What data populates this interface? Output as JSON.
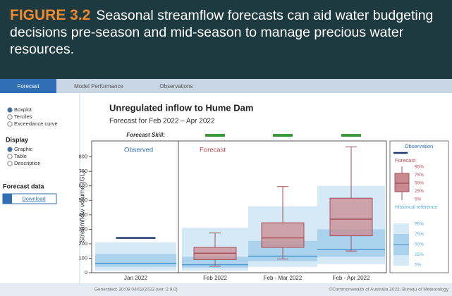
{
  "header": {
    "figure": "FIGURE 3.2",
    "caption": "Seasonal streamflow forecasts can aid water budgeting decisions pre-season and mid-season to manage precious water resources."
  },
  "tabs": [
    "Forecast",
    "Model Performance",
    "Observations"
  ],
  "sidebar": {
    "options": [
      "Boxplot",
      "Terciles",
      "Exceedance curve"
    ],
    "display_heading": "Display",
    "display_options": [
      "Graphic",
      "Table",
      "Description"
    ],
    "data_heading": "Forecast data",
    "download": "Download"
  },
  "chart_data": {
    "type": "boxplot",
    "title": "Unregulated inflow to Hume Dam",
    "subtitle": "Forecast for Feb 2022 – Apr 2022",
    "skill_label": "Forecast Skill:",
    "panels": [
      "Observed",
      "Forecast"
    ],
    "ylabel": "Streamflow volume (GL)",
    "categories": [
      "Jan 2022",
      "Feb 2022",
      "Feb - Mar 2022",
      "Feb - Apr 2022"
    ],
    "ylim": [
      0,
      910
    ],
    "yticks": [
      0,
      100,
      200,
      300,
      400,
      500,
      600,
      700,
      800
    ],
    "observed": {
      "name": "Observation",
      "color": "#1f3b6e",
      "values": [
        240,
        null,
        null,
        null
      ]
    },
    "forecast": {
      "name": "Forecast",
      "color": "#a8505a",
      "fill": "#c98a8f",
      "p5": [
        null,
        45,
        95,
        150
      ],
      "p25": [
        null,
        90,
        175,
        255
      ],
      "p50": [
        null,
        135,
        240,
        370
      ],
      "p75": [
        null,
        175,
        345,
        515
      ],
      "p95": [
        null,
        275,
        595,
        870
      ]
    },
    "historical": {
      "name": "Historical reference",
      "color": "#5aa9dc",
      "p5": [
        15,
        15,
        40,
        60
      ],
      "p25": [
        40,
        35,
        80,
        110
      ],
      "p50": [
        65,
        55,
        115,
        160
      ],
      "p75": [
        130,
        110,
        220,
        300
      ],
      "p95": [
        210,
        310,
        460,
        600
      ]
    },
    "percentile_labels": [
      "95%",
      "75%",
      "50%",
      "25%",
      "5%"
    ]
  },
  "footer": {
    "generated": "Generated: 20:08 04/02/2022 (ver. 2.9.0)",
    "copyright": "©Commonwealth of Australia 2022, Bureau of Meteorology"
  }
}
